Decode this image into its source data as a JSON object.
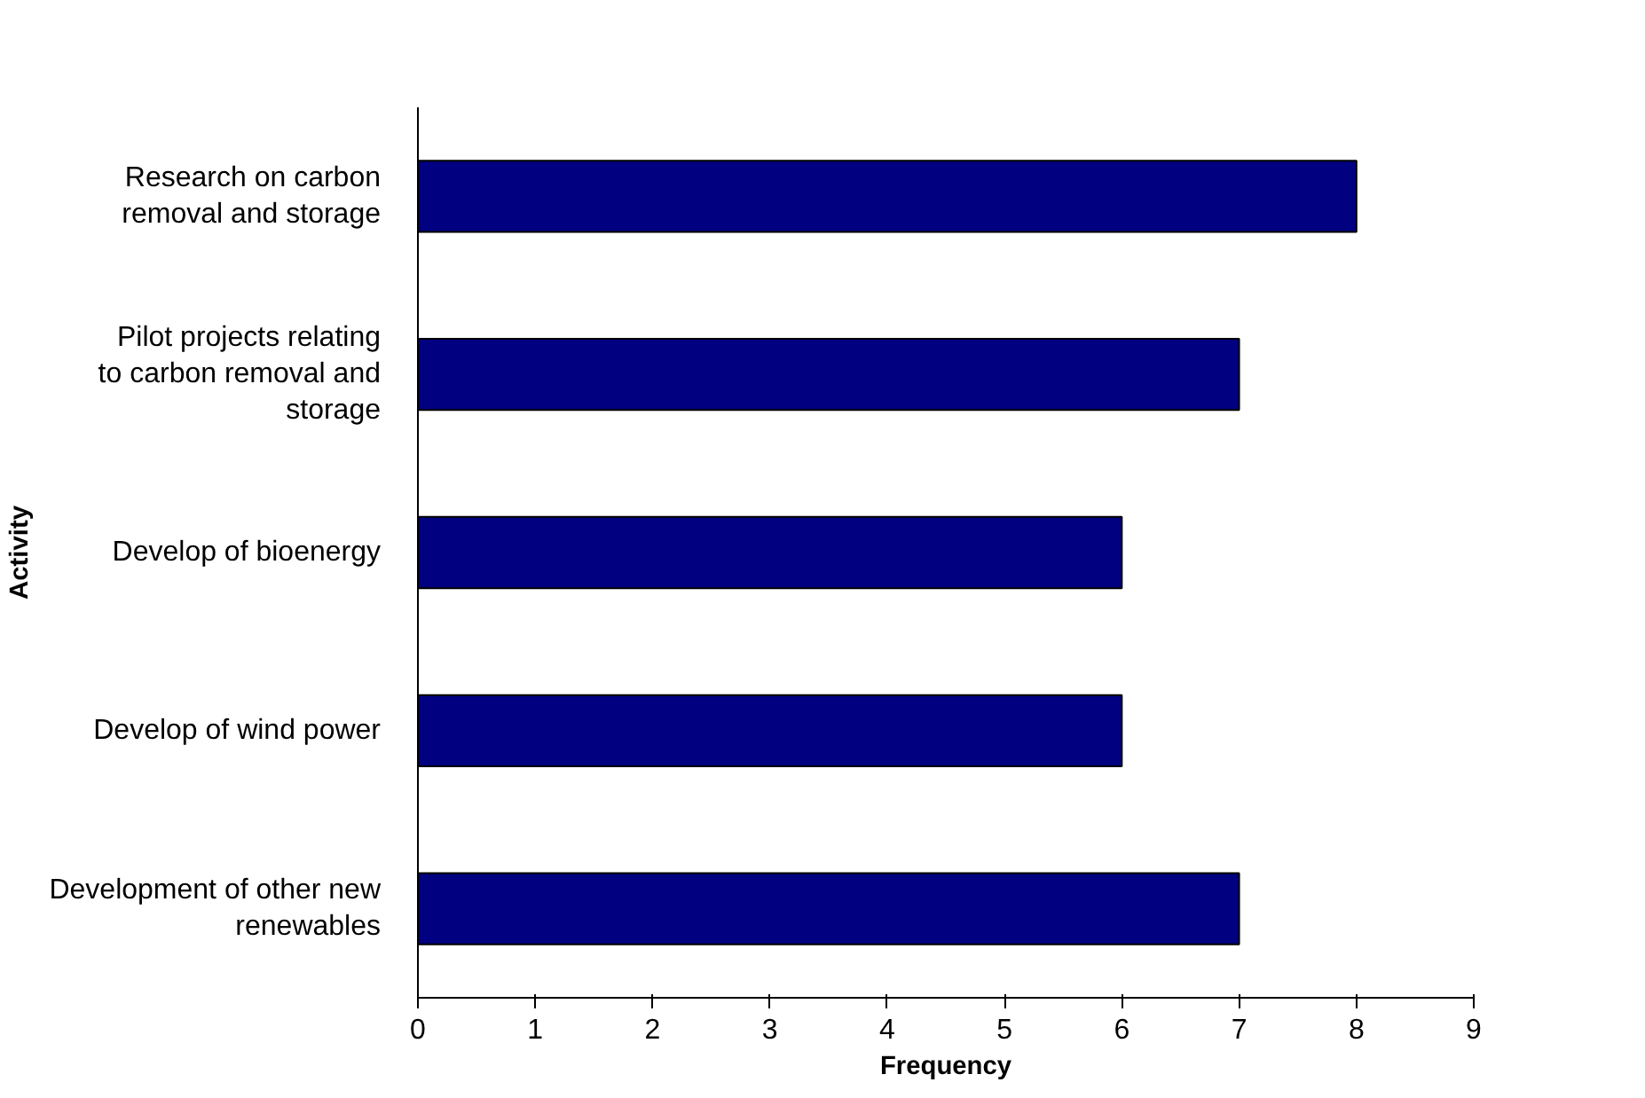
{
  "chart_data": {
    "type": "bar",
    "orientation": "horizontal",
    "xlabel": "Frequency",
    "ylabel": "Activity",
    "categories": [
      "Research on carbon removal and storage",
      "Pilot projects relating to carbon removal and storage",
      "Develop of bioenergy",
      "Develop of wind power",
      "Development of other new renewables"
    ],
    "values": [
      8,
      7,
      6,
      6,
      7
    ],
    "color": "#000080",
    "xlim": [
      0,
      9
    ],
    "xticks": [
      0,
      1,
      2,
      3,
      4,
      5,
      6,
      7,
      8,
      9
    ],
    "grid": false
  }
}
